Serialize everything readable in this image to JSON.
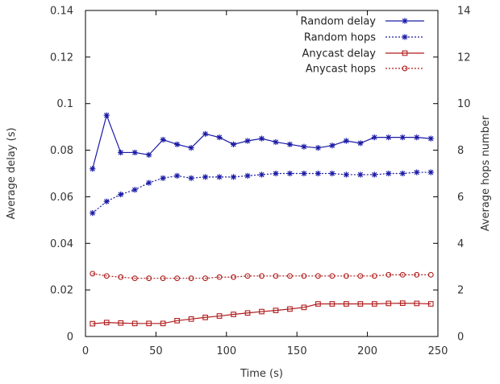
{
  "chart_data": {
    "type": "line",
    "title": "",
    "xlabel": "Time (s)",
    "ylabel": "Average delay (s)",
    "y2label": "Average hops number",
    "xlim": [
      0,
      250
    ],
    "ylim": [
      0,
      0.14
    ],
    "y2lim": [
      0,
      14
    ],
    "x_ticks": [
      "0",
      "50",
      "100",
      "150",
      "200",
      "250"
    ],
    "y_ticks": [
      "0",
      "0.02",
      "0.04",
      "0.06",
      "0.08",
      "0.1",
      "0.12",
      "0.14"
    ],
    "y2_ticks": [
      "0",
      "2",
      "4",
      "6",
      "8",
      "10",
      "12",
      "14"
    ],
    "grid": false,
    "legend_position": "top-right",
    "x": [
      5,
      15,
      25,
      35,
      45,
      55,
      65,
      75,
      85,
      95,
      105,
      115,
      125,
      135,
      145,
      155,
      165,
      175,
      185,
      195,
      205,
      215,
      225,
      235,
      245
    ],
    "series": [
      {
        "name": "Random delay",
        "axis": "left",
        "color": "#1a1aa6",
        "marker": "asterisk",
        "line_style": "solid",
        "values": [
          0.072,
          0.095,
          0.079,
          0.079,
          0.078,
          0.0845,
          0.0825,
          0.081,
          0.087,
          0.0855,
          0.0825,
          0.084,
          0.085,
          0.0835,
          0.0825,
          0.0815,
          0.081,
          0.082,
          0.084,
          0.083,
          0.0855,
          0.0855,
          0.0855,
          0.0855,
          0.085
        ]
      },
      {
        "name": "Random hops",
        "axis": "right",
        "color": "#1a1aa6",
        "marker": "asterisk",
        "line_style": "dotted",
        "values": [
          5.3,
          5.8,
          6.1,
          6.3,
          6.6,
          6.8,
          6.9,
          6.8,
          6.85,
          6.85,
          6.85,
          6.9,
          6.95,
          7.0,
          7.0,
          7.0,
          7.0,
          7.0,
          6.95,
          6.95,
          6.95,
          7.0,
          7.0,
          7.05,
          7.05
        ]
      },
      {
        "name": "Anycast delay",
        "axis": "left",
        "color": "#b01c1c",
        "marker": "square",
        "line_style": "solid",
        "values": [
          0.0055,
          0.006,
          0.0058,
          0.0056,
          0.0056,
          0.0056,
          0.0068,
          0.0075,
          0.0082,
          0.0088,
          0.0095,
          0.0101,
          0.0107,
          0.0112,
          0.0118,
          0.0125,
          0.014,
          0.014,
          0.014,
          0.014,
          0.014,
          0.0142,
          0.0143,
          0.0142,
          0.014
        ]
      },
      {
        "name": "Anycast hops",
        "axis": "right",
        "color": "#b01c1c",
        "marker": "circle",
        "line_style": "dotted",
        "values": [
          2.7,
          2.6,
          2.55,
          2.5,
          2.5,
          2.5,
          2.5,
          2.5,
          2.5,
          2.55,
          2.55,
          2.6,
          2.6,
          2.6,
          2.6,
          2.6,
          2.6,
          2.6,
          2.6,
          2.6,
          2.6,
          2.65,
          2.65,
          2.65,
          2.65
        ]
      }
    ]
  }
}
